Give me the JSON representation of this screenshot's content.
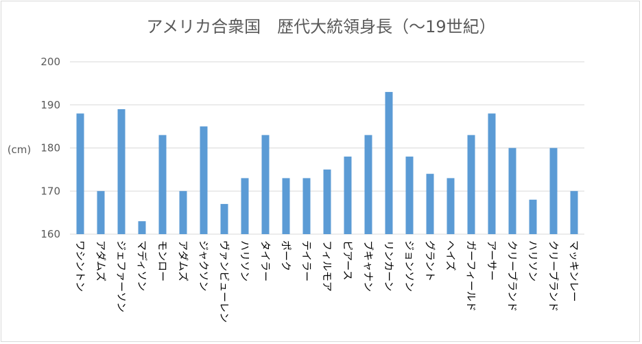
{
  "chart_data": {
    "type": "bar",
    "title": "アメリカ合衆国　歴代大統領身長（～19世紀）",
    "xlabel": "",
    "ylabel": "(cm)",
    "ylim": [
      160,
      200
    ],
    "yticks": [
      160,
      170,
      180,
      190,
      200
    ],
    "grid": true,
    "legend": "none",
    "bar_color": "#5b9bd5",
    "categories": [
      "ワシントン",
      "アダムズ",
      "ジェファーソン",
      "マディソン",
      "モンロー",
      "アダムズ",
      "ジャクソン",
      "ヴァンビューレン",
      "ハリソン",
      "タイラー",
      "ポーク",
      "テイラー",
      "フィルモア",
      "ピアース",
      "ブキャナン",
      "リンカーン",
      "ジョンソン",
      "グラント",
      "ヘイズ",
      "ガーフィールド",
      "アーサー",
      "クリーブランド",
      "ハリソン",
      "クリーブランド",
      "マッキンレー"
    ],
    "values": [
      188,
      170,
      189,
      163,
      183,
      170,
      185,
      167,
      173,
      183,
      173,
      173,
      175,
      178,
      183,
      193,
      178,
      174,
      173,
      183,
      188,
      180,
      168,
      180,
      170
    ]
  }
}
